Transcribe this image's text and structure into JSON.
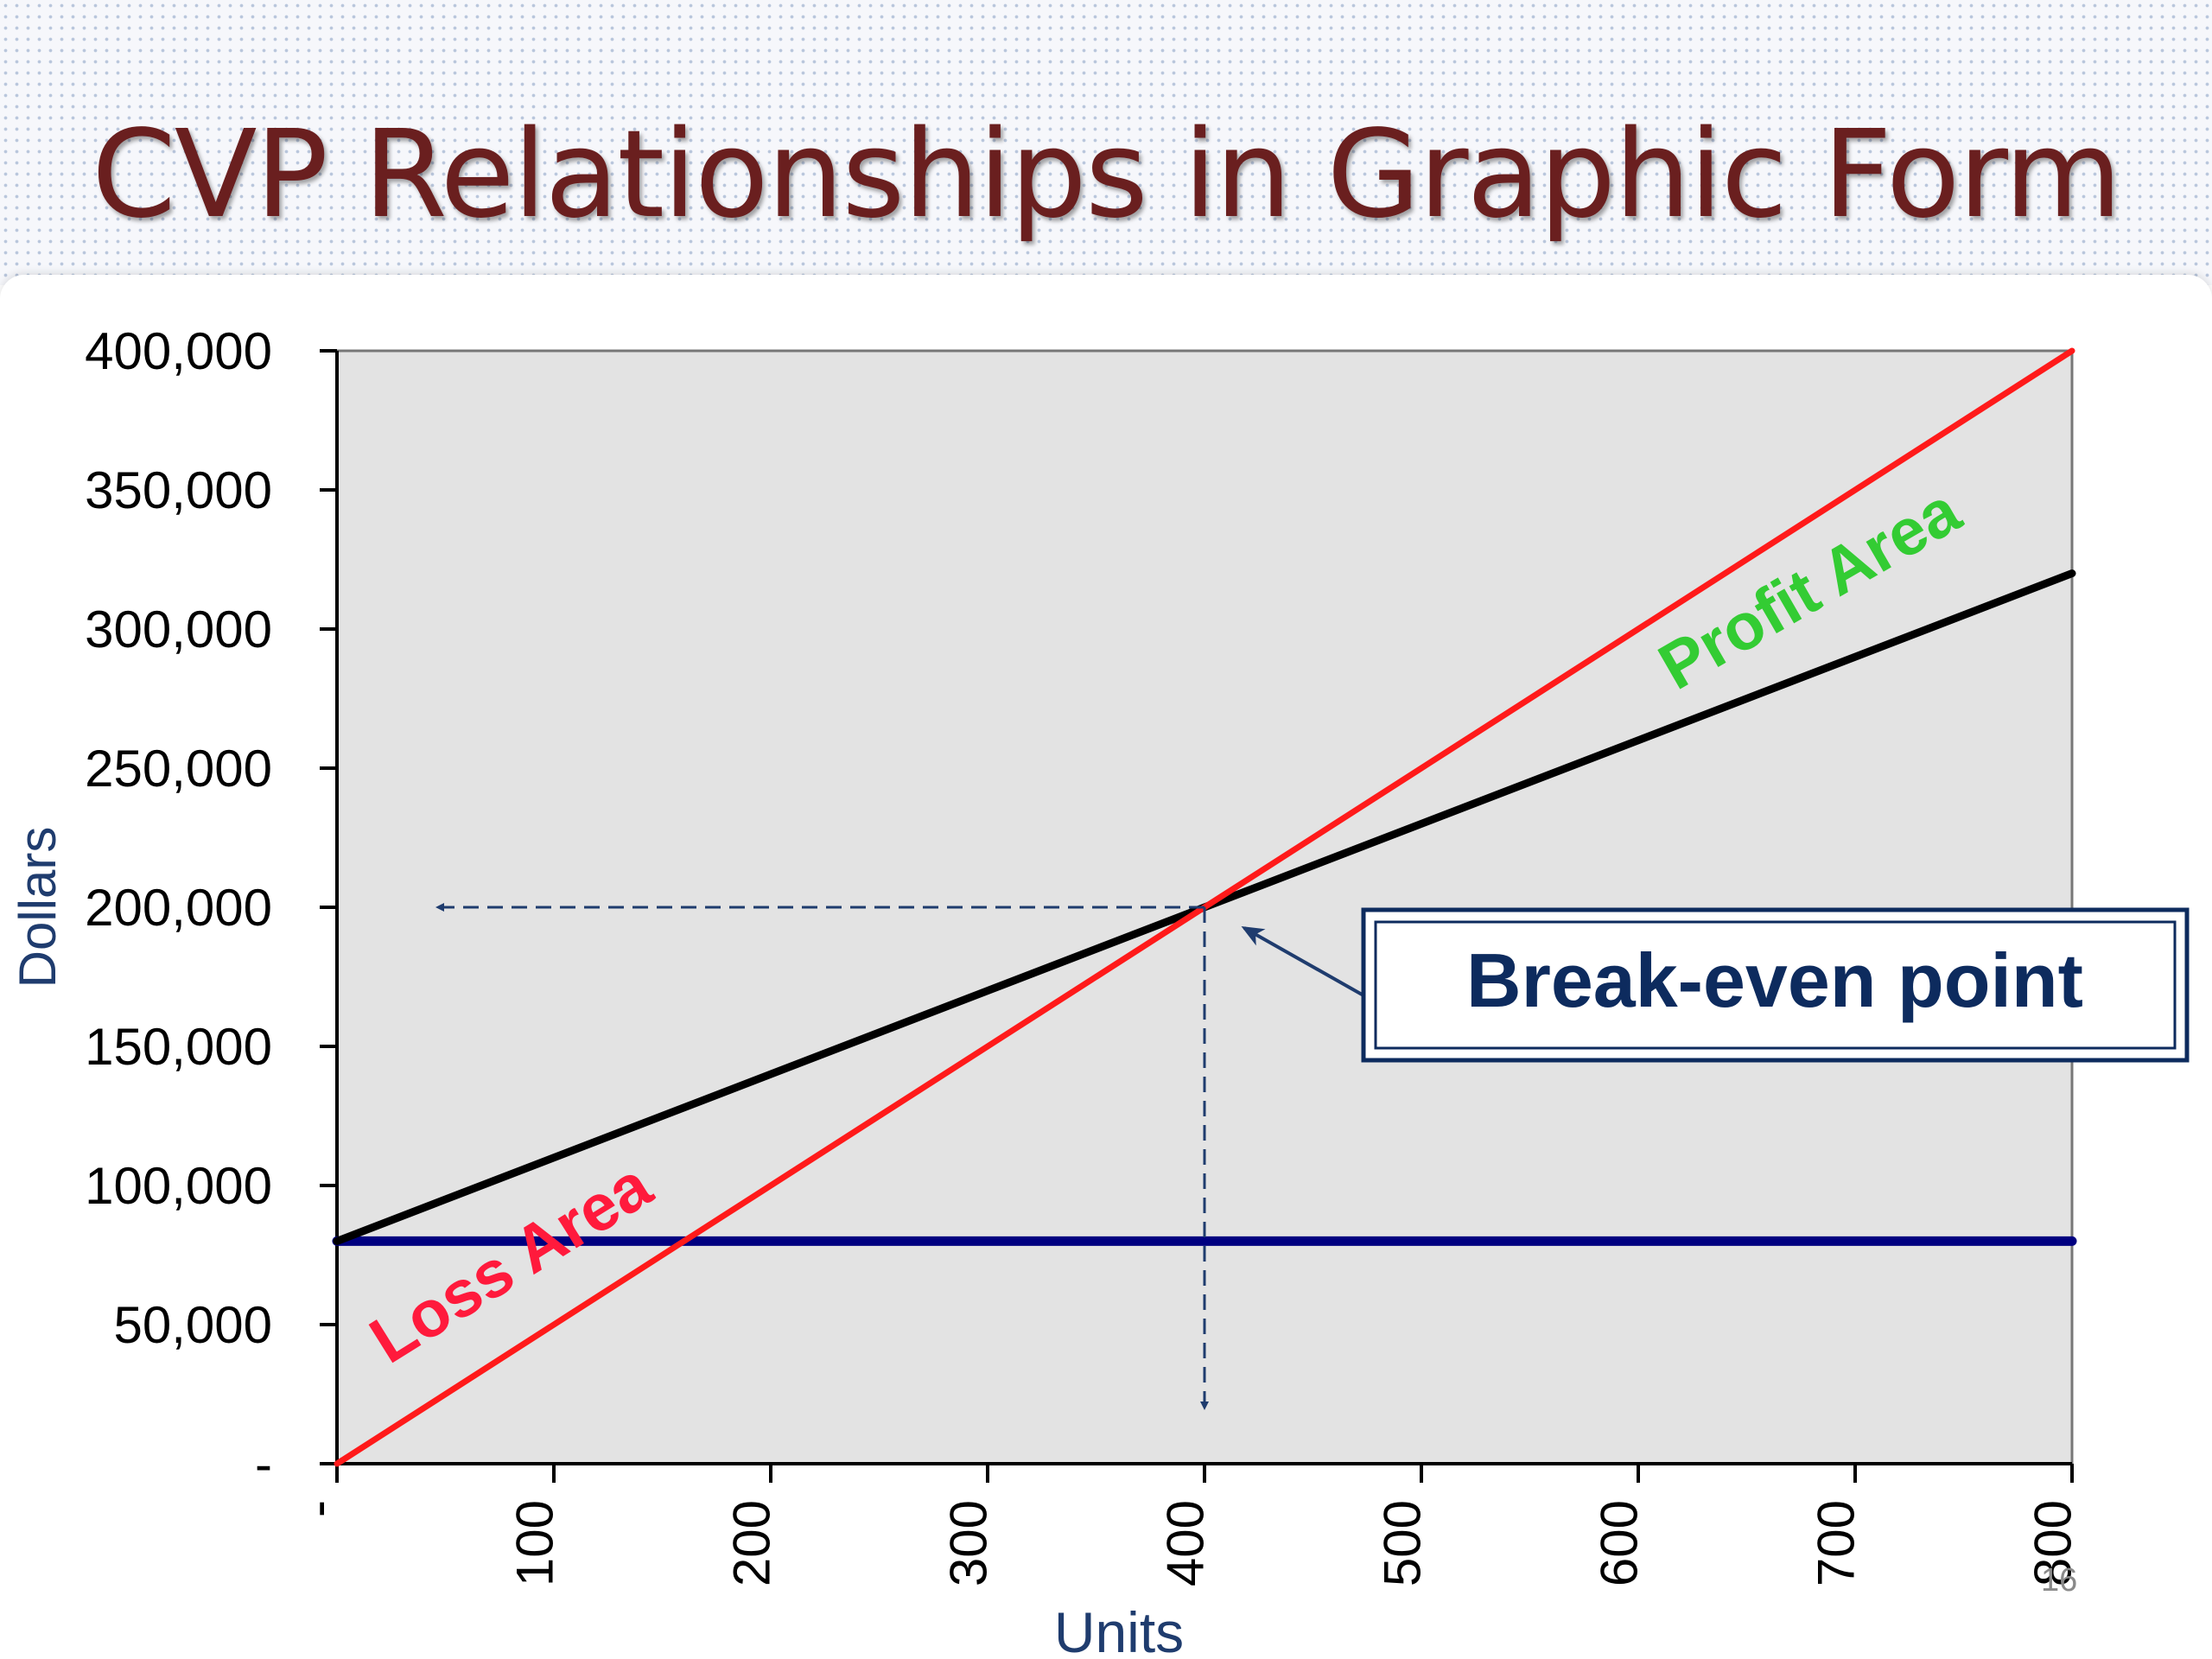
{
  "slide": {
    "title": "CVP Relationships in Graphic Form",
    "number": "16"
  },
  "chart_data": {
    "type": "line",
    "title": "",
    "xlabel": "Units",
    "ylabel": "Dollars",
    "xlim": [
      0,
      800
    ],
    "ylim": [
      0,
      400000
    ],
    "x_ticks": [
      0,
      100,
      200,
      300,
      400,
      500,
      600,
      700,
      800
    ],
    "x_tick_labels": [
      "-",
      "100",
      "200",
      "300",
      "400",
      "500",
      "600",
      "700",
      "800"
    ],
    "y_ticks": [
      0,
      50000,
      100000,
      150000,
      200000,
      250000,
      300000,
      350000,
      400000
    ],
    "y_tick_labels": [
      "-",
      "50,000",
      "100,000",
      "150,000",
      "200,000",
      "250,000",
      "300,000",
      "350,000",
      "400,000"
    ],
    "plot_background": "#e3e3e3",
    "series": [
      {
        "key": "revenue",
        "x": [
          0,
          800
        ],
        "y": [
          0,
          400000
        ],
        "color": "#ff1a1a"
      },
      {
        "key": "total-cost",
        "x": [
          0,
          800
        ],
        "y": [
          80000,
          320000
        ],
        "color": "#000000"
      },
      {
        "key": "fixed-cost",
        "x": [
          0,
          800
        ],
        "y": [
          80000,
          80000
        ],
        "color": "#000080"
      }
    ],
    "break_even": {
      "x": 400,
      "y": 200000,
      "label": "Break-even point",
      "color": "#0d2b5e"
    },
    "annotations": [
      {
        "key": "loss",
        "text": "Loss Area",
        "color": "#ff1a3c"
      },
      {
        "key": "profit",
        "text": "Profit Area",
        "color": "#33cc33"
      }
    ]
  }
}
